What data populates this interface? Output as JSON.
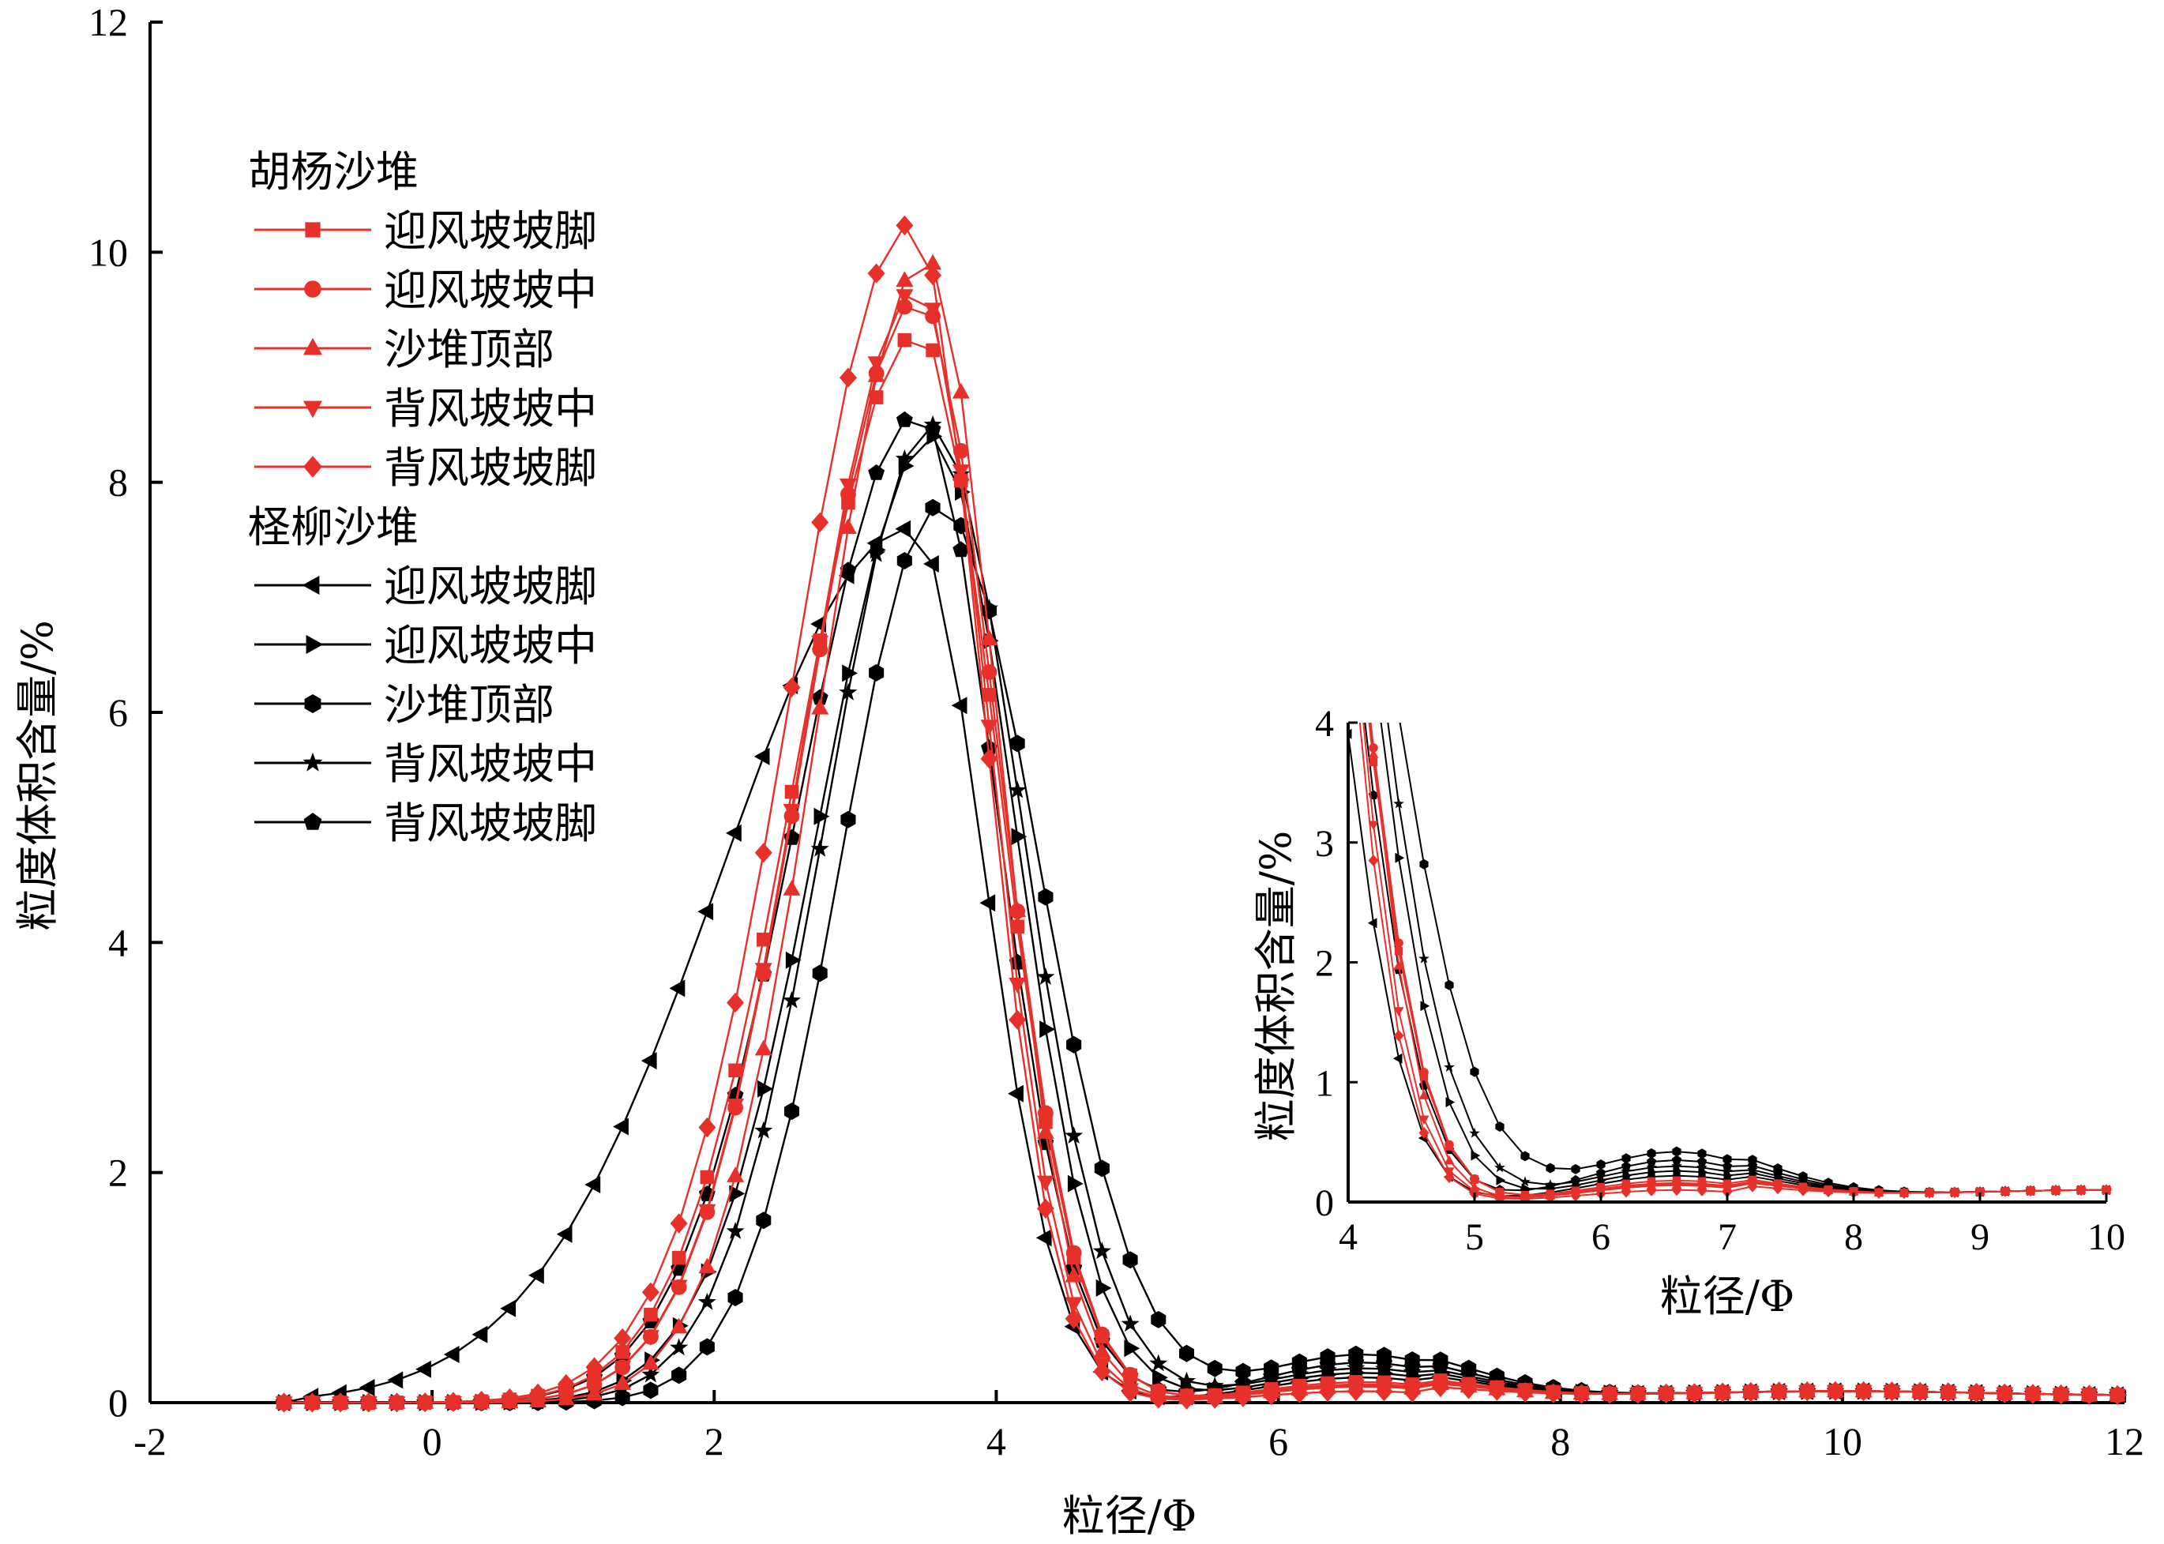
{
  "chart_data": [
    {
      "type": "line",
      "xlabel": "粒径/Φ",
      "ylabel": "粒度体积含量/%",
      "xlim": [
        -2,
        12
      ],
      "ylim": [
        0,
        12
      ],
      "xticks": [
        -2,
        0,
        2,
        4,
        6,
        8,
        10,
        12
      ],
      "yticks": [
        0,
        2,
        4,
        6,
        8,
        10,
        12
      ],
      "legend_position": "top-left",
      "legend": [
        {
          "group": "胡杨沙堆",
          "color": "#e8302b",
          "items": [
            {
              "label": "迎风坡坡脚",
              "marker": "square"
            },
            {
              "label": "迎风坡坡中",
              "marker": "circle"
            },
            {
              "label": "沙堆顶部",
              "marker": "triangle-up"
            },
            {
              "label": "背风坡坡中",
              "marker": "triangle-down"
            },
            {
              "label": "背风坡坡脚",
              "marker": "diamond"
            }
          ]
        },
        {
          "group": "柽柳沙堆",
          "color": "#000000",
          "items": [
            {
              "label": "迎风坡坡脚",
              "marker": "triangle-left"
            },
            {
              "label": "迎风坡坡中",
              "marker": "triangle-right"
            },
            {
              "label": "沙堆顶部",
              "marker": "hexagon"
            },
            {
              "label": "背风坡坡中",
              "marker": "star"
            },
            {
              "label": "背风坡坡脚",
              "marker": "pentagon"
            }
          ]
        }
      ],
      "series": [
        {
          "name": "迎风坡坡脚",
          "group": "胡杨沙堆",
          "color": "#e8302b",
          "marker": "square",
          "mu": 3.45,
          "peak": 9.3,
          "tailW": 0.55,
          "tailL": 0.85,
          "bump": 0.18
        },
        {
          "name": "迎风坡坡中",
          "group": "胡杨沙堆",
          "color": "#e8302b",
          "marker": "circle",
          "mu": 3.45,
          "peak": 9.6,
          "tailW": 0.55,
          "tailL": 0.8,
          "bump": 0.16
        },
        {
          "name": "沙堆顶部",
          "group": "胡杨沙堆",
          "color": "#e8302b",
          "marker": "triangle-up",
          "mu": 3.5,
          "peak": 9.95,
          "tailW": 0.5,
          "tailL": 0.75,
          "bump": 0.14
        },
        {
          "name": "背风坡坡中",
          "group": "胡杨沙堆",
          "color": "#e8302b",
          "marker": "triangle-down",
          "mu": 3.45,
          "peak": 9.7,
          "tailW": 0.5,
          "tailL": 0.8,
          "bump": 0.15
        },
        {
          "name": "背风坡坡脚",
          "group": "胡杨沙堆",
          "color": "#e8302b",
          "marker": "diamond",
          "mu": 3.4,
          "peak": 10.25,
          "tailW": 0.5,
          "tailL": 0.85,
          "bump": 0.1
        },
        {
          "name": "迎风坡坡脚",
          "group": "柽柳沙堆",
          "color": "#000000",
          "marker": "triangle-left",
          "mu": 3.4,
          "peak": 7.6,
          "tailW": 0.52,
          "tailL": 1.35,
          "bump": 0.22
        },
        {
          "name": "迎风坡坡中",
          "group": "柽柳沙堆",
          "color": "#000000",
          "marker": "triangle-right",
          "mu": 3.55,
          "peak": 8.4,
          "tailW": 0.58,
          "tailL": 0.8,
          "bump": 0.26
        },
        {
          "name": "沙堆顶部",
          "group": "柽柳沙堆",
          "color": "#000000",
          "marker": "hexagon",
          "mu": 3.6,
          "peak": 7.8,
          "tailW": 0.7,
          "tailL": 0.7,
          "bump": 0.42
        },
        {
          "name": "背风坡坡中",
          "group": "柽柳沙堆",
          "color": "#000000",
          "marker": "star",
          "mu": 3.55,
          "peak": 8.5,
          "tailW": 0.62,
          "tailL": 0.75,
          "bump": 0.3
        },
        {
          "name": "背风坡坡脚",
          "group": "柽柳沙堆",
          "color": "#000000",
          "marker": "pentagon",
          "mu": 3.45,
          "peak": 8.6,
          "tailW": 0.55,
          "tailL": 0.85,
          "bump": 0.35
        }
      ]
    },
    {
      "type": "line",
      "inset": true,
      "xlabel": "粒径/Φ",
      "ylabel": "粒度体积含量/%",
      "xlim": [
        4,
        10
      ],
      "ylim": [
        0,
        4
      ],
      "xticks": [
        4,
        5,
        6,
        7,
        8,
        9,
        10
      ],
      "yticks": [
        0,
        1,
        2,
        3,
        4
      ],
      "series_ref": "same series as main chart, zoomed to the fine-particle tail"
    }
  ]
}
